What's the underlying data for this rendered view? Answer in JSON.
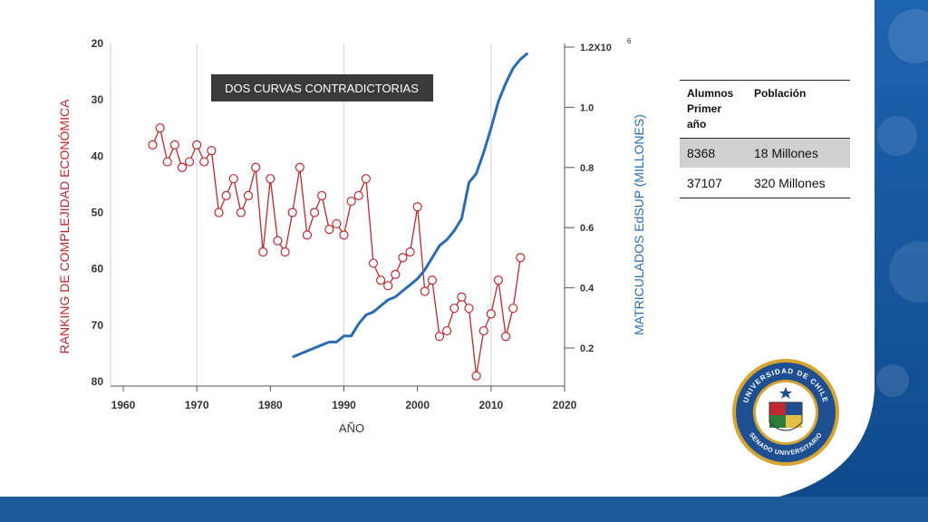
{
  "table": {
    "headers": [
      "Alumnos Primer año",
      "Población"
    ],
    "rows": [
      [
        "8368",
        "18 Millones"
      ],
      [
        "37107",
        "320 Millones"
      ]
    ]
  },
  "seal": {
    "text_top": "UNIVERSIDAD DE CHILE",
    "text_bottom": "SENADO UNIVERSITARIO"
  },
  "colors": {
    "ranking": "#c0282d",
    "enrollment": "#2b6cb0",
    "band": "#1f5b98"
  },
  "chart_data": {
    "type": "line",
    "annotation": "DOS CURVAS CONTRADICTORIAS",
    "xlabel": "AÑO",
    "ylabel_left": "RANKING DE COMPLEJIDAD ECONÓMICA",
    "ylabel_right": "MATRICULADOS EdSUP (MILLONES)",
    "xlim": [
      1960,
      2020
    ],
    "xticks": [
      "1960",
      "1970",
      "1980",
      "1990",
      "2000",
      "2010",
      "2020"
    ],
    "ylim_left": [
      20,
      80
    ],
    "left_inverted": true,
    "yticks_left": [
      "20",
      "30",
      "40",
      "50",
      "60",
      "70",
      "80"
    ],
    "ylim_right": [
      0.1,
      1.2
    ],
    "yticks_right": [
      {
        "v": 0.2,
        "label": "0.2"
      },
      {
        "v": 0.4,
        "label": "0.4"
      },
      {
        "v": 0.6,
        "label": "0.6"
      },
      {
        "v": 0.8,
        "label": "0.8"
      },
      {
        "v": 1.0,
        "label": "1.0"
      },
      {
        "v": 1.2,
        "label": "1.2X10"
      }
    ],
    "right_top_exponent": "6",
    "grid_x": [
      1970,
      1990,
      2010
    ],
    "series": [
      {
        "axis": "left",
        "marker": "circle",
        "x": [
          1964,
          1965,
          1966,
          1967,
          1968,
          1969,
          1970,
          1971,
          1972,
          1973,
          1974,
          1975,
          1976,
          1977,
          1978,
          1979,
          1980,
          1981,
          1982,
          1983,
          1984,
          1985,
          1986,
          1987,
          1988,
          1989,
          1990,
          1991,
          1992,
          1993,
          1994,
          1995,
          1996,
          1997,
          1998,
          1999,
          2000,
          2001,
          2002,
          2003,
          2004,
          2005,
          2006,
          2007,
          2008,
          2009,
          2010,
          2011,
          2012,
          2013,
          2014
        ],
        "values": [
          38,
          35,
          41,
          38,
          42,
          41,
          38,
          41,
          39,
          50,
          47,
          44,
          50,
          47,
          42,
          57,
          44,
          55,
          57,
          50,
          42,
          54,
          50,
          47,
          53,
          52,
          54,
          48,
          47,
          44,
          59,
          62,
          63,
          61,
          58,
          57,
          49,
          64,
          62,
          72,
          71,
          67,
          65,
          67,
          79,
          71,
          68,
          62,
          72,
          67,
          58
        ]
      },
      {
        "axis": "right",
        "marker": "none",
        "x": [
          1983,
          1984,
          1985,
          1986,
          1987,
          1988,
          1989,
          1990,
          1991,
          1992,
          1993,
          1994,
          1995,
          1996,
          1997,
          1998,
          1999,
          2000,
          2001,
          2002,
          2003,
          2004,
          2005,
          2006,
          2007,
          2008,
          2009,
          2010,
          2011,
          2012,
          2013,
          2014,
          2015
        ],
        "values": [
          0.17,
          0.18,
          0.19,
          0.2,
          0.21,
          0.22,
          0.22,
          0.24,
          0.24,
          0.28,
          0.31,
          0.32,
          0.34,
          0.36,
          0.37,
          0.39,
          0.41,
          0.43,
          0.46,
          0.5,
          0.54,
          0.56,
          0.59,
          0.63,
          0.75,
          0.78,
          0.85,
          0.93,
          1.02,
          1.08,
          1.13,
          1.16,
          1.18
        ]
      }
    ]
  }
}
